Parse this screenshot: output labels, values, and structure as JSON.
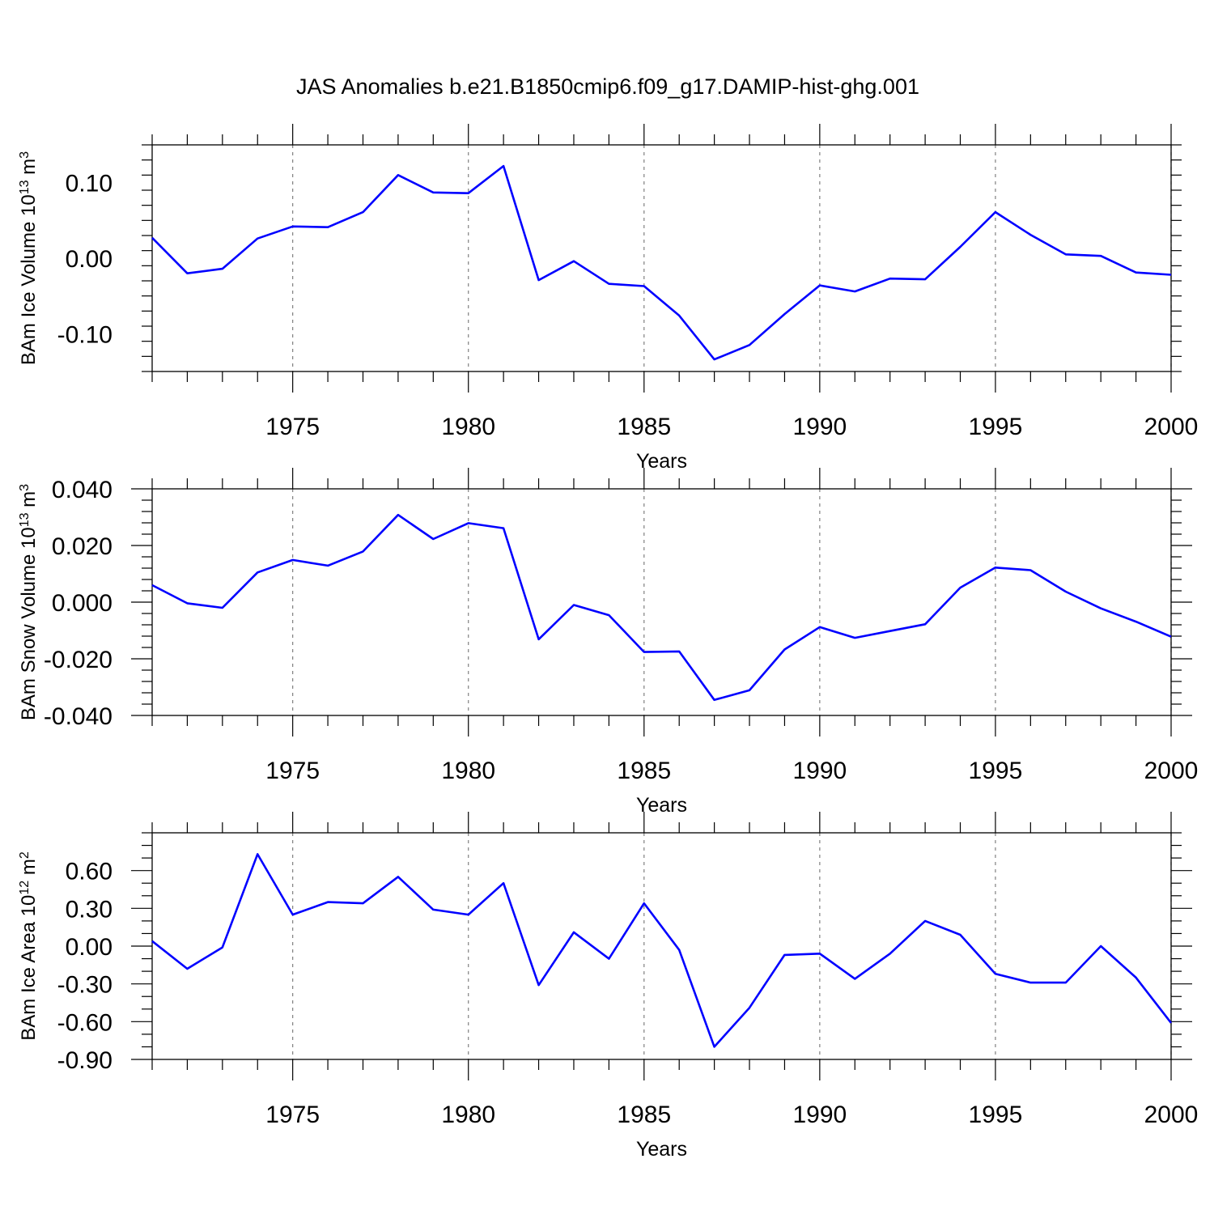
{
  "title": "JAS Anomalies b.e21.B1850cmip6.f09_g17.DAMIP-hist-ghg.001",
  "colors": {
    "series": "#0000ff",
    "axis": "#000000",
    "grid": "#808080",
    "background": "#ffffff"
  },
  "chart_data": [
    {
      "type": "line",
      "title": "JAS Anomalies b.e21.B1850cmip6.f09_g17.DAMIP-hist-ghg.001",
      "ylabel": {
        "main": "BAm Ice Volume 10",
        "exp": "13",
        "unit": " m",
        "unit_exp": "3"
      },
      "xlabel": "Years",
      "xlim": [
        1971,
        2000
      ],
      "ylim": [
        -0.15,
        0.15
      ],
      "xticks": [
        1975,
        1980,
        1985,
        1990,
        1995,
        2000
      ],
      "xtick_labels": [
        "1975",
        "1980",
        "1985",
        "1990",
        "1995",
        "2000"
      ],
      "yticks": [
        0.1,
        0.0,
        -0.1
      ],
      "ytick_labels": [
        "0.10",
        "0.00",
        "-0.10"
      ],
      "yminor_step": 0.02,
      "grid": "vertical dashed at major x ticks",
      "x": [
        1971,
        1972,
        1973,
        1974,
        1975,
        1976,
        1977,
        1978,
        1979,
        1980,
        1981,
        1982,
        1983,
        1984,
        1985,
        1986,
        1987,
        1988,
        1989,
        1990,
        1991,
        1992,
        1993,
        1994,
        1995,
        1996,
        1997,
        1998,
        1999,
        2000
      ],
      "values": [
        0.027,
        -0.02,
        -0.014,
        0.026,
        0.042,
        0.041,
        0.061,
        0.11,
        0.087,
        0.086,
        0.122,
        -0.029,
        -0.004,
        -0.034,
        -0.037,
        -0.076,
        -0.134,
        -0.115,
        -0.074,
        -0.036,
        -0.044,
        -0.027,
        -0.028,
        0.015,
        0.061,
        0.031,
        0.005,
        0.003,
        -0.019,
        -0.022
      ]
    },
    {
      "type": "line",
      "ylabel": {
        "main": "BAm Snow Volume 10",
        "exp": "13",
        "unit": " m",
        "unit_exp": "3"
      },
      "xlabel": "Years",
      "xlim": [
        1971,
        2000
      ],
      "ylim": [
        -0.04,
        0.04
      ],
      "xticks": [
        1975,
        1980,
        1985,
        1990,
        1995,
        2000
      ],
      "xtick_labels": [
        "1975",
        "1980",
        "1985",
        "1990",
        "1995",
        "2000"
      ],
      "yticks": [
        0.04,
        0.02,
        0.0,
        -0.02,
        -0.04
      ],
      "ytick_labels": [
        "0.040",
        "0.020",
        "0.000",
        "-0.020",
        "-0.040"
      ],
      "yminor_step": 0.004,
      "grid": "vertical dashed at major x ticks",
      "x": [
        1971,
        1972,
        1973,
        1974,
        1975,
        1976,
        1977,
        1978,
        1979,
        1980,
        1981,
        1982,
        1983,
        1984,
        1985,
        1986,
        1987,
        1988,
        1989,
        1990,
        1991,
        1992,
        1993,
        1994,
        1995,
        1996,
        1997,
        1998,
        1999,
        2000
      ],
      "values": [
        0.006,
        -0.0004,
        -0.002,
        0.0105,
        0.0149,
        0.0129,
        0.0179,
        0.0308,
        0.0223,
        0.0279,
        0.0261,
        -0.0131,
        -0.001,
        -0.0046,
        -0.0176,
        -0.0174,
        -0.0345,
        -0.0311,
        -0.0167,
        -0.0088,
        -0.0126,
        -0.0102,
        -0.0078,
        0.0051,
        0.0122,
        0.0113,
        0.0037,
        -0.0022,
        -0.0069,
        -0.0122
      ]
    },
    {
      "type": "line",
      "ylabel": {
        "main": "BAm Ice Area 10",
        "exp": "12",
        "unit": " m",
        "unit_exp": "2"
      },
      "xlabel": "Years",
      "xlim": [
        1971,
        2000
      ],
      "ylim": [
        -0.9,
        0.9
      ],
      "xticks": [
        1975,
        1980,
        1985,
        1990,
        1995,
        2000
      ],
      "xtick_labels": [
        "1975",
        "1980",
        "1985",
        "1990",
        "1995",
        "2000"
      ],
      "yticks": [
        0.6,
        0.3,
        0.0,
        -0.3,
        -0.6,
        -0.9
      ],
      "ytick_labels": [
        "0.60",
        "0.30",
        "0.00",
        "-0.30",
        "-0.60",
        "-0.90"
      ],
      "yminor_step": 0.1,
      "grid": "vertical dashed at major x ticks",
      "x": [
        1971,
        1972,
        1973,
        1974,
        1975,
        1976,
        1977,
        1978,
        1979,
        1980,
        1981,
        1982,
        1983,
        1984,
        1985,
        1986,
        1987,
        1988,
        1989,
        1990,
        1991,
        1992,
        1993,
        1994,
        1995,
        1996,
        1997,
        1998,
        1999,
        2000
      ],
      "values": [
        0.04,
        -0.18,
        -0.01,
        0.73,
        0.25,
        0.35,
        0.34,
        0.55,
        0.29,
        0.25,
        0.5,
        -0.31,
        0.11,
        -0.1,
        0.34,
        -0.03,
        -0.8,
        -0.49,
        -0.07,
        -0.06,
        -0.26,
        -0.06,
        0.2,
        0.09,
        -0.22,
        -0.29,
        -0.29,
        0.0,
        -0.25,
        -0.61
      ]
    }
  ]
}
